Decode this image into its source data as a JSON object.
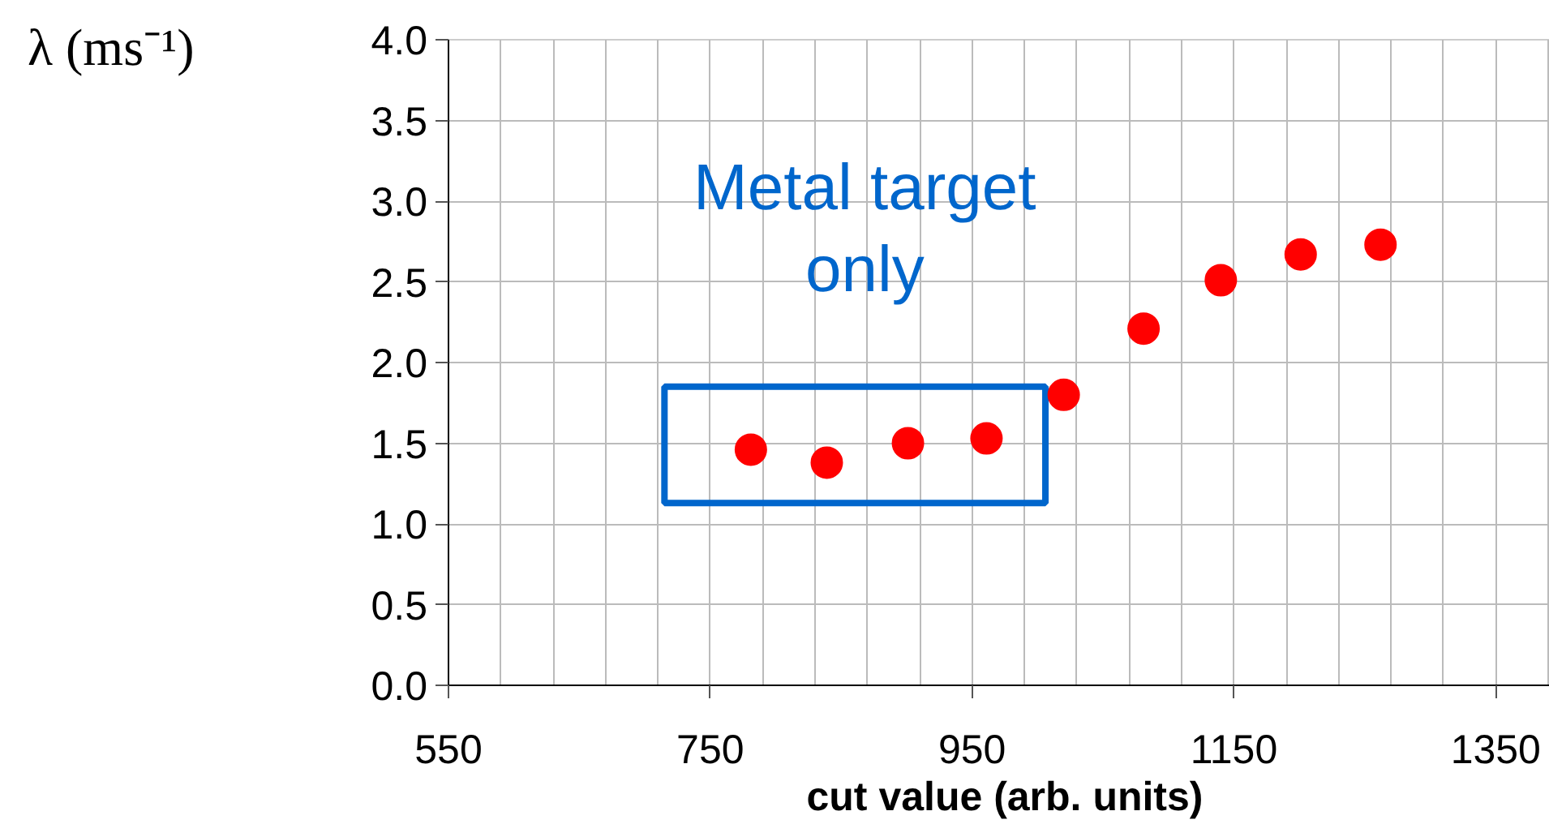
{
  "chart_data": {
    "type": "scatter",
    "xlabel": "cut value (arb. units)",
    "ylabel": "λ (ms⁻¹)",
    "annotations": [
      "Metal target\nonly"
    ],
    "series": [
      {
        "color": "#ff0000",
        "x": [
          781,
          839,
          901,
          961,
          1020,
          1081,
          1140,
          1201,
          1262
        ],
        "values": [
          1.46,
          1.38,
          1.5,
          1.53,
          1.8,
          2.21,
          2.51,
          2.67,
          2.73
        ]
      }
    ],
    "xlim": [
      550,
      1400
    ],
    "ylim": [
      0,
      4.0
    ],
    "xticks": [
      550,
      750,
      950,
      1150,
      1350
    ],
    "yticks": [
      {
        "value": 0,
        "label": "0.0"
      },
      {
        "value": 0.5,
        "label": "0.5"
      },
      {
        "value": 1.0,
        "label": "1.0"
      },
      {
        "value": 1.5,
        "label": "1.5"
      },
      {
        "value": 2.0,
        "label": "2.0"
      },
      {
        "value": 2.5,
        "label": "2.5"
      },
      {
        "value": 3.0,
        "label": "3.0"
      },
      {
        "value": 3.5,
        "label": "3.5"
      },
      {
        "value": 4.0,
        "label": "4.0"
      }
    ],
    "grid": true,
    "marker": "circle"
  }
}
